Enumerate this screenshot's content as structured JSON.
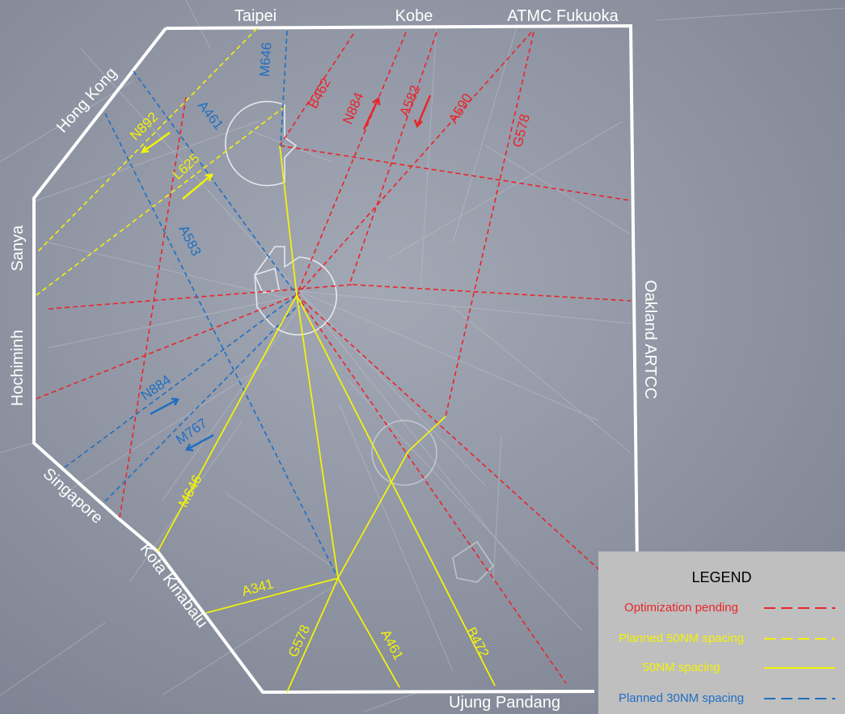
{
  "colors": {
    "background": "#8e94a3",
    "fir_boundary": "#ffffff",
    "red": "#e8262a",
    "yellow": "#f2f20a",
    "blue": "#1f6fc2",
    "legend_bg": "#bfbfbf"
  },
  "fir_labels": {
    "taipei": "Taipei",
    "kobe": "Kobe",
    "atmc_fukuoka": "ATMC Fukuoka",
    "hong_kong": "Hong Kong",
    "sanya": "Sanya",
    "hochiminh": "Hochiminh",
    "singapore": "Singapore",
    "kota_kinabalu": "Kota Kinabalu",
    "ujung_pandang": "Ujung Pandang",
    "oakland_artcc": "Oakland ARTCC"
  },
  "routes": {
    "red": {
      "b462": "B462",
      "n884": "N884",
      "a582": "A582",
      "a590": "A590",
      "g578": "G578"
    },
    "yellow_dashed": {
      "n892": "N892",
      "l625": "L625"
    },
    "blue": {
      "m646": "M646",
      "a461": "A461",
      "a583": "A583",
      "n884": "N884",
      "m767": "M767"
    },
    "yellow_solid": {
      "m646": "M646",
      "a341": "A341",
      "g578": "G578",
      "a461": "A461",
      "b472": "B472"
    }
  },
  "legend": {
    "title": "LEGEND",
    "items": [
      {
        "label": "Optimization pending",
        "color": "#e8262a",
        "dashed": true
      },
      {
        "label": "Planned 50NM spacing",
        "color": "#f2f20a",
        "dashed": true
      },
      {
        "label": "50NM spacing",
        "color": "#f2f20a",
        "dashed": false
      },
      {
        "label": "Planned 30NM spacing",
        "color": "#1f6fc2",
        "dashed": true
      }
    ]
  }
}
